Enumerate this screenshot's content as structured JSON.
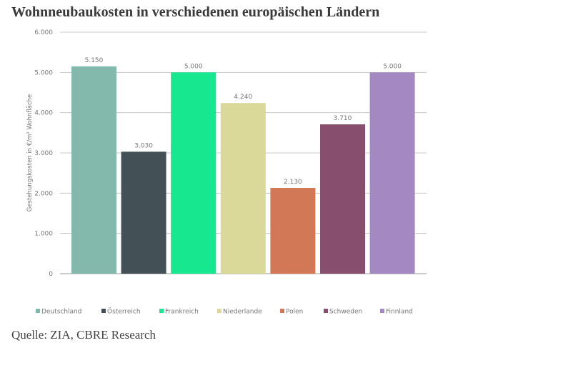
{
  "chart_data": {
    "type": "bar",
    "title": "Wohnneubaukosten in verschiedenen europäischen Ländern",
    "ylabel": "Gestehungskosten in €/m² Wohnfläche",
    "xlabel": "",
    "ylim": [
      0,
      6000
    ],
    "yticks": [
      0,
      1000,
      2000,
      3000,
      4000,
      5000,
      6000
    ],
    "ytick_labels": [
      "0",
      "1.000",
      "2.000",
      "3.000",
      "4.000",
      "5.000",
      "6.000"
    ],
    "grid": true,
    "legend": "bottom",
    "categories": [
      "Deutschland",
      "Österreich",
      "Frankreich",
      "Niederlande",
      "Polen",
      "Schweden",
      "Finnland"
    ],
    "values": [
      5150,
      3030,
      5000,
      4240,
      2130,
      3710,
      5000
    ],
    "data_labels": [
      "5.150",
      "3.030",
      "5.000",
      "4.240",
      "2.130",
      "3.710",
      "5.000"
    ],
    "colors": [
      "#82b9ac",
      "#435156",
      "#17e88f",
      "#dbd99a",
      "#d27857",
      "#884e6d",
      "#a388c2"
    ]
  },
  "source": "Quelle: ZIA, CBRE Research"
}
